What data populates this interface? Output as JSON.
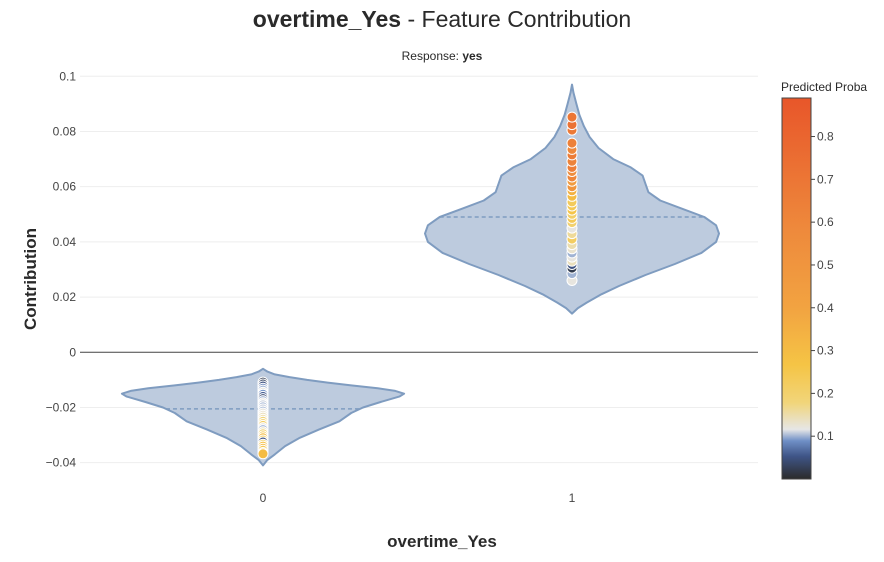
{
  "title": {
    "feature": "overtime_Yes",
    "suffix": " - Feature Contribution"
  },
  "subtitle": {
    "prefix": "Response: ",
    "value": "yes"
  },
  "colorbar": {
    "title": "Predicted Proba",
    "ticks": [
      "0.1",
      "0.2",
      "0.3",
      "0.4",
      "0.5",
      "0.6",
      "0.7",
      "0.8"
    ],
    "range": [
      0,
      0.89
    ]
  },
  "colors": {
    "violin_fill": "#b9c8dc",
    "violin_line": "#7f9cc0",
    "zero_line": "#444444",
    "grid": "#eeeeee",
    "scale": [
      "#2b2b2b",
      "#4f6fa8",
      "#e6e6e6",
      "#f5c445",
      "#f08f3c",
      "#e8562a"
    ]
  },
  "chart_data": {
    "type": "violin",
    "xlabel": "overtime_Yes",
    "ylabel": "Contribution",
    "categories": [
      "0",
      "1"
    ],
    "ylim": [
      -0.047,
      0.103
    ],
    "yticks": [
      "0.1",
      "0.08",
      "0.06",
      "0.04",
      "0.02",
      "0",
      "−0.02",
      "−0.04"
    ],
    "ytick_values": [
      0.1,
      0.08,
      0.06,
      0.04,
      0.02,
      0,
      -0.02,
      -0.04
    ],
    "grid": true,
    "violins": [
      {
        "category": "0",
        "min": -0.041,
        "max": -0.006,
        "median": -0.0205,
        "density": [
          [
            -0.041,
            0.0
          ],
          [
            -0.039,
            0.03
          ],
          [
            -0.037,
            0.08
          ],
          [
            -0.034,
            0.15
          ],
          [
            -0.031,
            0.25
          ],
          [
            -0.028,
            0.38
          ],
          [
            -0.025,
            0.52
          ],
          [
            -0.022,
            0.6
          ],
          [
            -0.02,
            0.68
          ],
          [
            -0.018,
            0.8
          ],
          [
            -0.016,
            0.93
          ],
          [
            -0.015,
            0.96
          ],
          [
            -0.014,
            0.9
          ],
          [
            -0.013,
            0.78
          ],
          [
            -0.012,
            0.6
          ],
          [
            -0.011,
            0.44
          ],
          [
            -0.01,
            0.3
          ],
          [
            -0.009,
            0.18
          ],
          [
            -0.008,
            0.08
          ],
          [
            -0.007,
            0.03
          ],
          [
            -0.006,
            0.0
          ]
        ],
        "points": [
          [
            -0.0108,
            0.02
          ],
          [
            -0.0115,
            0.03
          ],
          [
            -0.0122,
            0.05
          ],
          [
            -0.013,
            0.08
          ],
          [
            -0.0137,
            0.1
          ],
          [
            -0.0145,
            0.12
          ],
          [
            -0.0152,
            0.09
          ],
          [
            -0.016,
            0.06
          ],
          [
            -0.0168,
            0.04
          ],
          [
            -0.0175,
            0.1
          ],
          [
            -0.0183,
            0.12
          ],
          [
            -0.019,
            0.11
          ],
          [
            -0.0198,
            0.1
          ],
          [
            -0.0205,
            0.11
          ],
          [
            -0.0213,
            0.1
          ],
          [
            -0.022,
            0.12
          ],
          [
            -0.0228,
            0.13
          ],
          [
            -0.0235,
            0.14
          ],
          [
            -0.0243,
            0.15
          ],
          [
            -0.025,
            0.18
          ],
          [
            -0.0258,
            0.2
          ],
          [
            -0.0265,
            0.22
          ],
          [
            -0.0273,
            0.12
          ],
          [
            -0.028,
            0.1
          ],
          [
            -0.0288,
            0.14
          ],
          [
            -0.0295,
            0.2
          ],
          [
            -0.0303,
            0.25
          ],
          [
            -0.031,
            0.3
          ],
          [
            -0.0318,
            0.22
          ],
          [
            -0.0325,
            0.05
          ],
          [
            -0.0333,
            0.18
          ],
          [
            -0.034,
            0.28
          ],
          [
            -0.0348,
            0.3
          ],
          [
            -0.0355,
            0.24
          ],
          [
            -0.0363,
            0.2
          ],
          [
            -0.0368,
            0.3
          ]
        ]
      },
      {
        "category": "1",
        "min": 0.014,
        "max": 0.097,
        "median": 0.049,
        "density": [
          [
            0.014,
            0.0
          ],
          [
            0.016,
            0.04
          ],
          [
            0.018,
            0.1
          ],
          [
            0.021,
            0.2
          ],
          [
            0.024,
            0.32
          ],
          [
            0.028,
            0.5
          ],
          [
            0.032,
            0.7
          ],
          [
            0.036,
            0.88
          ],
          [
            0.04,
            0.98
          ],
          [
            0.043,
            1.0
          ],
          [
            0.046,
            0.98
          ],
          [
            0.049,
            0.9
          ],
          [
            0.052,
            0.75
          ],
          [
            0.055,
            0.6
          ],
          [
            0.058,
            0.52
          ],
          [
            0.061,
            0.5
          ],
          [
            0.064,
            0.48
          ],
          [
            0.067,
            0.4
          ],
          [
            0.07,
            0.28
          ],
          [
            0.074,
            0.18
          ],
          [
            0.078,
            0.12
          ],
          [
            0.082,
            0.08
          ],
          [
            0.086,
            0.05
          ],
          [
            0.09,
            0.03
          ],
          [
            0.094,
            0.01
          ],
          [
            0.097,
            0.0
          ]
        ],
        "points": [
          [
            0.026,
            0.12
          ],
          [
            0.0285,
            0.1
          ],
          [
            0.0305,
            0.02
          ],
          [
            0.0318,
            0.05
          ],
          [
            0.033,
            0.14
          ],
          [
            0.0345,
            0.12
          ],
          [
            0.036,
            0.1
          ],
          [
            0.0375,
            0.13
          ],
          [
            0.039,
            0.15
          ],
          [
            0.041,
            0.22
          ],
          [
            0.043,
            0.16
          ],
          [
            0.045,
            0.12
          ],
          [
            0.047,
            0.2
          ],
          [
            0.0485,
            0.24
          ],
          [
            0.05,
            0.21
          ],
          [
            0.0515,
            0.26
          ],
          [
            0.053,
            0.24
          ],
          [
            0.0545,
            0.23
          ],
          [
            0.0565,
            0.3
          ],
          [
            0.0585,
            0.34
          ],
          [
            0.06,
            0.5
          ],
          [
            0.062,
            0.45
          ],
          [
            0.0635,
            0.6
          ],
          [
            0.0655,
            0.56
          ],
          [
            0.067,
            0.65
          ],
          [
            0.0692,
            0.62
          ],
          [
            0.0715,
            0.66
          ],
          [
            0.0735,
            0.59
          ],
          [
            0.0758,
            0.64
          ],
          [
            0.0805,
            0.68
          ],
          [
            0.0825,
            0.72
          ],
          [
            0.0852,
            0.7
          ]
        ]
      }
    ]
  }
}
